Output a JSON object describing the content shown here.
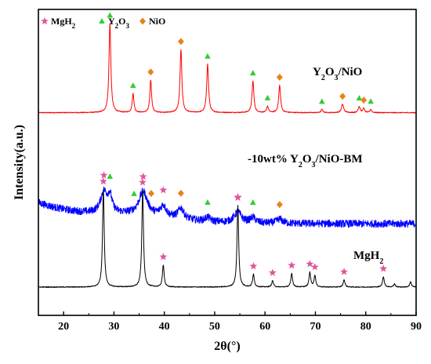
{
  "chart_data": {
    "type": "line",
    "title": "",
    "xlabel": "2θ(°)",
    "ylabel": "Intensity(a.u.)",
    "xlim": [
      15,
      90
    ],
    "x_ticks": [
      "20",
      "30",
      "40",
      "50",
      "60",
      "70",
      "80",
      "90"
    ],
    "y_ticks_shown": false,
    "grid": false,
    "legend": {
      "placement": "top-left",
      "entries": [
        {
          "label_main": "MgH",
          "label_sub": "2",
          "label_tail": "",
          "marker": "star",
          "color": "#e0559c"
        },
        {
          "label_main": "Y",
          "label_sub": "2",
          "label_tail": "O",
          "label_sub2": "3",
          "marker": "triangle",
          "color": "#33cc33"
        },
        {
          "label_main": "NiO",
          "label_sub": "",
          "label_tail": "",
          "marker": "diamond",
          "color": "#e8821c"
        }
      ]
    },
    "series": [
      {
        "name": "Y2O3/NiO",
        "label_parts": [
          "Y",
          "2",
          "O",
          "3",
          "/NiO"
        ],
        "color": "#ff0000",
        "baseline": 0.085,
        "noise": 0.004,
        "peaks": [
          [
            29.2,
            0.85,
            0.22
          ],
          [
            33.8,
            0.18,
            0.2
          ],
          [
            37.3,
            0.31,
            0.2
          ],
          [
            43.3,
            0.6,
            0.22
          ],
          [
            48.6,
            0.46,
            0.22
          ],
          [
            57.6,
            0.3,
            0.22
          ],
          [
            60.5,
            0.06,
            0.2
          ],
          [
            62.9,
            0.26,
            0.22
          ],
          [
            71.3,
            0.03,
            0.2
          ],
          [
            75.4,
            0.08,
            0.25
          ],
          [
            78.7,
            0.06,
            0.22
          ],
          [
            79.6,
            0.04,
            0.2
          ],
          [
            81.0,
            0.03,
            0.2
          ]
        ],
        "markers": [
          {
            "type": "triangle",
            "x": 29.2
          },
          {
            "type": "triangle",
            "x": 33.8
          },
          {
            "type": "diamond",
            "x": 37.3
          },
          {
            "type": "diamond",
            "x": 43.3
          },
          {
            "type": "triangle",
            "x": 48.6
          },
          {
            "type": "triangle",
            "x": 57.6
          },
          {
            "type": "triangle",
            "x": 60.5
          },
          {
            "type": "diamond",
            "x": 62.9
          },
          {
            "type": "triangle",
            "x": 71.3
          },
          {
            "type": "diamond",
            "x": 75.4
          },
          {
            "type": "triangle",
            "x": 78.7
          },
          {
            "type": "diamond",
            "x": 79.6
          },
          {
            "type": "triangle",
            "x": 81.0
          }
        ]
      },
      {
        "name": "-10wt% Y2O3/NiO-BM",
        "label_parts": [
          "-10wt% Y",
          "2",
          "O",
          "3",
          "/NiO-BM"
        ],
        "color": "#0000ff",
        "broad_background": true,
        "noise": 0.035,
        "peaks": [
          [
            28.0,
            0.2,
            0.8
          ],
          [
            29.2,
            0.15,
            0.5
          ],
          [
            35.8,
            0.22,
            1.0
          ],
          [
            39.8,
            0.1,
            0.7
          ],
          [
            43.3,
            0.1,
            0.7
          ],
          [
            48.6,
            0.04,
            0.6
          ],
          [
            54.6,
            0.1,
            0.9
          ],
          [
            57.6,
            0.05,
            0.6
          ],
          [
            62.9,
            0.04,
            0.7
          ]
        ],
        "markers": [
          {
            "type": "star",
            "x": 28.0
          },
          {
            "type": "triangle",
            "x": 29.2
          },
          {
            "type": "triangle",
            "x": 34.0
          },
          {
            "type": "star",
            "x": 35.8
          },
          {
            "type": "diamond",
            "x": 37.4
          },
          {
            "type": "star",
            "x": 39.8
          },
          {
            "type": "diamond",
            "x": 43.3
          },
          {
            "type": "triangle",
            "x": 48.6
          },
          {
            "type": "star",
            "x": 54.6
          },
          {
            "type": "triangle",
            "x": 57.6
          },
          {
            "type": "diamond",
            "x": 62.9
          }
        ]
      },
      {
        "name": "MgH2",
        "label_parts": [
          "MgH",
          "2",
          "",
          "",
          ""
        ],
        "color": "#000000",
        "baseline": 0.045,
        "noise": 0.004,
        "peaks": [
          [
            27.9,
            0.93,
            0.2
          ],
          [
            35.7,
            0.92,
            0.2
          ],
          [
            39.8,
            0.21,
            0.2
          ],
          [
            54.6,
            0.78,
            0.2
          ],
          [
            57.7,
            0.12,
            0.2
          ],
          [
            61.5,
            0.06,
            0.2
          ],
          [
            65.3,
            0.13,
            0.2
          ],
          [
            68.9,
            0.14,
            0.2
          ],
          [
            69.9,
            0.11,
            0.2
          ],
          [
            75.7,
            0.07,
            0.2
          ],
          [
            83.5,
            0.1,
            0.2
          ],
          [
            85.7,
            0.03,
            0.2
          ],
          [
            88.9,
            0.05,
            0.2
          ]
        ],
        "markers": [
          {
            "type": "star",
            "x": 27.9
          },
          {
            "type": "star",
            "x": 35.7
          },
          {
            "type": "star",
            "x": 39.8
          },
          {
            "type": "star",
            "x": 54.6
          },
          {
            "type": "star",
            "x": 57.7
          },
          {
            "type": "star",
            "x": 61.5
          },
          {
            "type": "star",
            "x": 65.3
          },
          {
            "type": "star",
            "x": 68.9
          },
          {
            "type": "star",
            "x": 69.9
          },
          {
            "type": "star",
            "x": 75.7
          },
          {
            "type": "star",
            "x": 83.5
          }
        ]
      }
    ]
  }
}
